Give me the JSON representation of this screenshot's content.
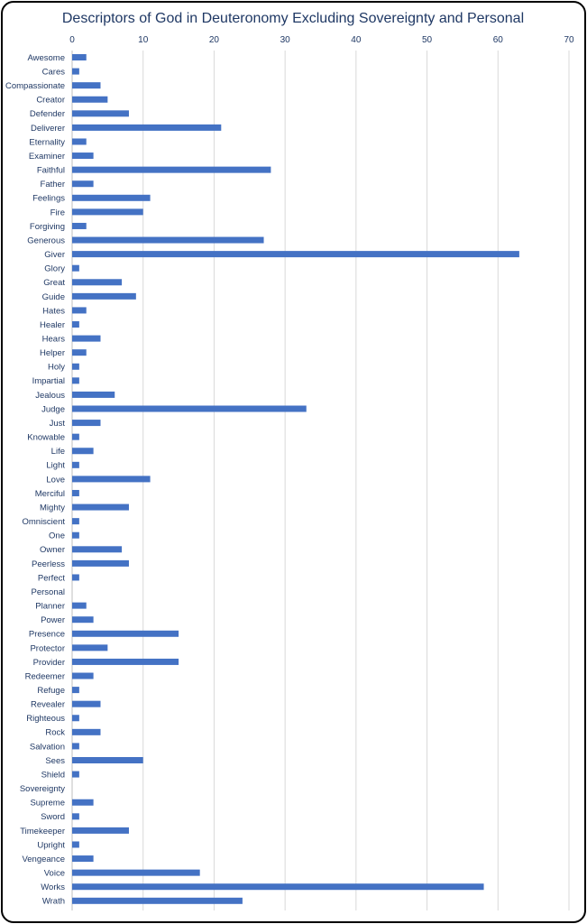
{
  "chart_data": {
    "type": "bar",
    "orientation": "horizontal",
    "title": "Descriptors of God in Deuteronomy Excluding Sovereignty and Personal",
    "xlim": [
      0,
      70
    ],
    "x_ticks": [
      "0",
      "10",
      "20",
      "30",
      "40",
      "50",
      "60",
      "70"
    ],
    "x_axis_position": "top",
    "grid": true,
    "bar_color": "#4472c4",
    "categories": [
      "Awesome",
      "Cares",
      "Compassionate",
      "Creator",
      "Defender",
      "Deliverer",
      "Eternality",
      "Examiner",
      "Faithful",
      "Father",
      "Feelings",
      "Fire",
      "Forgiving",
      "Generous",
      "Giver",
      "Glory",
      "Great",
      "Guide",
      "Hates",
      "Healer",
      "Hears",
      "Helper",
      "Holy",
      "Impartial",
      "Jealous",
      "Judge",
      "Just",
      "Knowable",
      "Life",
      "Light",
      "Love",
      "Merciful",
      "Mighty",
      "Omniscient",
      "One",
      "Owner",
      "Peerless",
      "Perfect",
      "Personal",
      "Planner",
      "Power",
      "Presence",
      "Protector",
      "Provider",
      "Redeemer",
      "Refuge",
      "Revealer",
      "Righteous",
      "Rock",
      "Salvation",
      "Sees",
      "Shield",
      "Sovereignty",
      "Supreme",
      "Sword",
      "Timekeeper",
      "Upright",
      "Vengeance",
      "Voice",
      "Works",
      "Wrath"
    ],
    "values": [
      2,
      1,
      4,
      5,
      8,
      21,
      2,
      3,
      28,
      3,
      11,
      10,
      2,
      27,
      63,
      1,
      7,
      9,
      2,
      1,
      4,
      2,
      1,
      1,
      6,
      33,
      4,
      1,
      3,
      1,
      11,
      1,
      8,
      1,
      1,
      7,
      8,
      1,
      0,
      2,
      3,
      15,
      5,
      15,
      3,
      1,
      4,
      1,
      4,
      1,
      10,
      1,
      0,
      3,
      1,
      8,
      1,
      3,
      18,
      58,
      24
    ]
  }
}
